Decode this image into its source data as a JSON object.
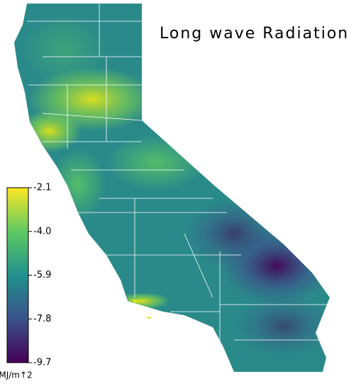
{
  "title": "Long wave Radiation",
  "colorbar": {
    "range": [
      -9.7,
      -2.1
    ],
    "ticks": [
      -2.1,
      {
        "value": -4,
        "label": "-4.0"
      },
      -5.9,
      -7.8,
      -9.7
    ],
    "unit": "MJ/m↑2"
  }
}
